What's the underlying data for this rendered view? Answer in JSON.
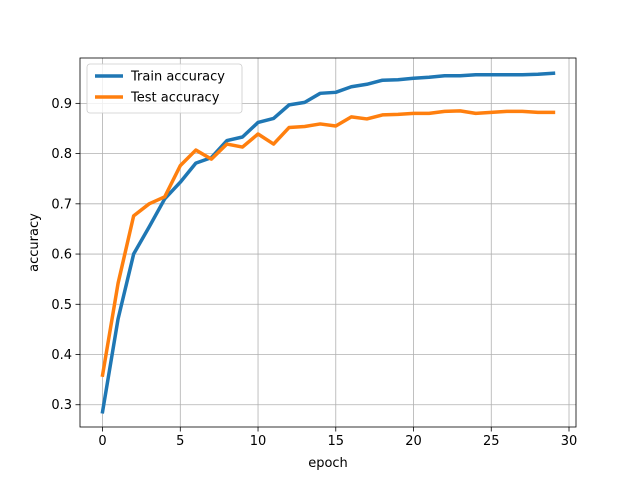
{
  "chart_data": {
    "type": "line",
    "title": "",
    "xlabel": "epoch",
    "ylabel": "accuracy",
    "xlim": [
      -1.45,
      30.45
    ],
    "ylim": [
      0.2557,
      0.9903
    ],
    "xticks": [
      0,
      5,
      10,
      15,
      20,
      25,
      30
    ],
    "yticks": [
      0.3,
      0.4,
      0.5,
      0.6,
      0.7,
      0.8,
      0.9
    ],
    "grid": true,
    "legend_position": "upper-left",
    "x": [
      0,
      1,
      2,
      3,
      4,
      5,
      6,
      7,
      8,
      9,
      10,
      11,
      12,
      13,
      14,
      15,
      16,
      17,
      18,
      19,
      20,
      21,
      22,
      23,
      24,
      25,
      26,
      27,
      28,
      29
    ],
    "series": [
      {
        "name": "Train accuracy",
        "color": "#1f77b4",
        "values": [
          0.286,
          0.471,
          0.6,
          0.654,
          0.71,
          0.743,
          0.781,
          0.792,
          0.826,
          0.833,
          0.862,
          0.87,
          0.897,
          0.902,
          0.92,
          0.922,
          0.933,
          0.938,
          0.946,
          0.947,
          0.95,
          0.952,
          0.955,
          0.955,
          0.957,
          0.957,
          0.957,
          0.957,
          0.958,
          0.96
        ]
      },
      {
        "name": "Test accuracy",
        "color": "#ff7f0e",
        "values": [
          0.359,
          0.542,
          0.676,
          0.7,
          0.714,
          0.776,
          0.807,
          0.789,
          0.819,
          0.813,
          0.839,
          0.819,
          0.852,
          0.854,
          0.859,
          0.855,
          0.873,
          0.869,
          0.877,
          0.878,
          0.88,
          0.88,
          0.884,
          0.885,
          0.88,
          0.882,
          0.884,
          0.884,
          0.882,
          0.882
        ]
      }
    ]
  }
}
